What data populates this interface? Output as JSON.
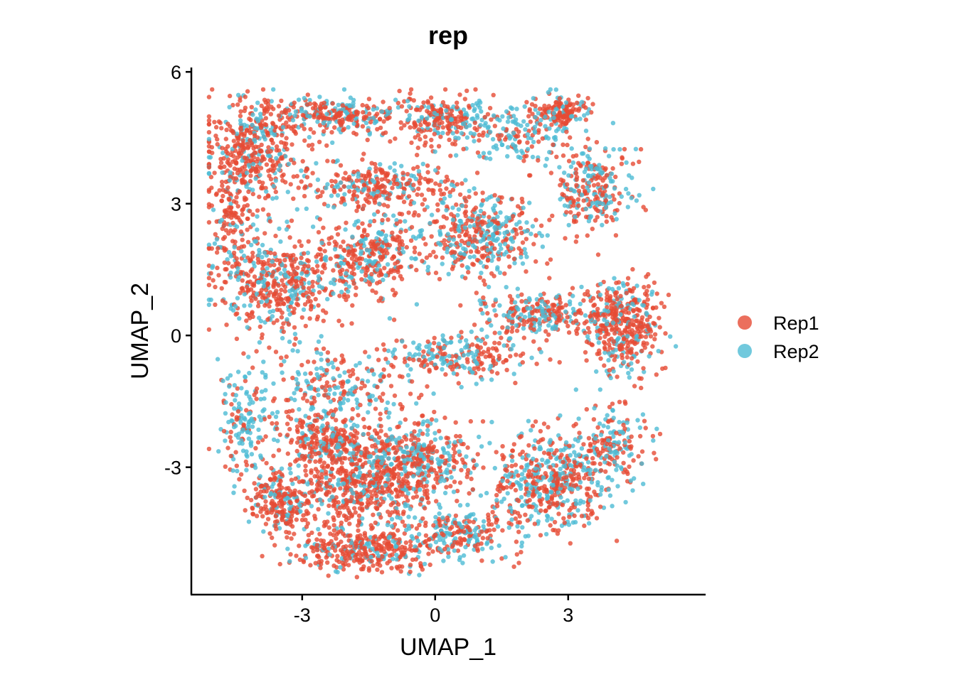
{
  "chart_data": {
    "type": "scatter",
    "title": "rep",
    "xlabel": "UMAP_1",
    "ylabel": "UMAP_2",
    "xlim": [
      -5.5,
      6.1
    ],
    "ylim": [
      -5.9,
      6.1
    ],
    "xticks": [
      {
        "value": -3,
        "label": "-3"
      },
      {
        "value": 0,
        "label": "0"
      },
      {
        "value": 3,
        "label": "3"
      }
    ],
    "yticks": [
      {
        "value": -3,
        "label": "-3"
      },
      {
        "value": 0,
        "label": "0"
      },
      {
        "value": 3,
        "label": "3"
      },
      {
        "value": 6,
        "label": "6"
      }
    ],
    "grid": false,
    "legend_position": "right",
    "series": [
      {
        "name": "Rep1",
        "color": "#E64B35"
      },
      {
        "name": "Rep2",
        "color": "#4DBBD5"
      }
    ],
    "clusters": [
      {
        "cx": -4.2,
        "cy": 4.2,
        "rx": 0.9,
        "ry": 1.0,
        "n": 420,
        "rep1": 0.75
      },
      {
        "cx": -2.3,
        "cy": 5.0,
        "rx": 1.6,
        "ry": 0.35,
        "n": 300,
        "rep1": 0.62
      },
      {
        "cx": 0.2,
        "cy": 4.9,
        "rx": 0.8,
        "ry": 0.45,
        "n": 200,
        "rep1": 0.7
      },
      {
        "cx": 2.9,
        "cy": 5.1,
        "rx": 0.5,
        "ry": 0.3,
        "n": 140,
        "rep1": 0.8
      },
      {
        "cx": 1.8,
        "cy": 4.6,
        "rx": 1.0,
        "ry": 0.6,
        "n": 180,
        "rep1": 0.35
      },
      {
        "cx": 3.6,
        "cy": 3.3,
        "rx": 0.7,
        "ry": 0.9,
        "n": 260,
        "rep1": 0.55
      },
      {
        "cx": -1.3,
        "cy": 3.4,
        "rx": 1.5,
        "ry": 0.5,
        "n": 300,
        "rep1": 0.7
      },
      {
        "cx": 1.0,
        "cy": 2.3,
        "rx": 1.1,
        "ry": 0.8,
        "n": 420,
        "rep1": 0.55
      },
      {
        "cx": -3.5,
        "cy": 1.2,
        "rx": 1.2,
        "ry": 0.9,
        "n": 480,
        "rep1": 0.7
      },
      {
        "cx": -1.5,
        "cy": 1.8,
        "rx": 0.9,
        "ry": 0.7,
        "n": 300,
        "rep1": 0.65
      },
      {
        "cx": 4.2,
        "cy": 0.2,
        "rx": 0.7,
        "ry": 0.9,
        "n": 420,
        "rep1": 0.7
      },
      {
        "cx": 2.3,
        "cy": 0.5,
        "rx": 1.2,
        "ry": 0.4,
        "n": 260,
        "rep1": 0.6
      },
      {
        "cx": 0.5,
        "cy": -0.5,
        "rx": 1.2,
        "ry": 0.4,
        "n": 220,
        "rep1": 0.55
      },
      {
        "cx": -2.2,
        "cy": -1.2,
        "rx": 1.4,
        "ry": 0.8,
        "n": 260,
        "rep1": 0.5
      },
      {
        "cx": -4.3,
        "cy": -2.0,
        "rx": 0.5,
        "ry": 1.1,
        "n": 160,
        "rep1": 0.35
      },
      {
        "cx": -2.4,
        "cy": -2.4,
        "rx": 0.9,
        "ry": 0.5,
        "n": 260,
        "rep1": 0.65
      },
      {
        "cx": -1.7,
        "cy": -3.5,
        "rx": 1.3,
        "ry": 0.8,
        "n": 520,
        "rep1": 0.72
      },
      {
        "cx": -0.4,
        "cy": -2.8,
        "rx": 1.0,
        "ry": 0.7,
        "n": 380,
        "rep1": 0.6
      },
      {
        "cx": 2.6,
        "cy": -3.3,
        "rx": 1.1,
        "ry": 0.9,
        "n": 520,
        "rep1": 0.6
      },
      {
        "cx": -3.5,
        "cy": -3.8,
        "rx": 0.6,
        "ry": 0.6,
        "n": 220,
        "rep1": 0.75
      },
      {
        "cx": -1.5,
        "cy": -4.9,
        "rx": 1.3,
        "ry": 0.4,
        "n": 340,
        "rep1": 0.75
      },
      {
        "cx": 4.0,
        "cy": -2.5,
        "rx": 0.6,
        "ry": 0.7,
        "n": 180,
        "rep1": 0.5
      },
      {
        "cx": 0.5,
        "cy": -4.5,
        "rx": 1.0,
        "ry": 0.5,
        "n": 220,
        "rep1": 0.5
      },
      {
        "cx": -4.6,
        "cy": 2.5,
        "rx": 0.4,
        "ry": 1.0,
        "n": 120,
        "rep1": 0.8
      }
    ]
  }
}
